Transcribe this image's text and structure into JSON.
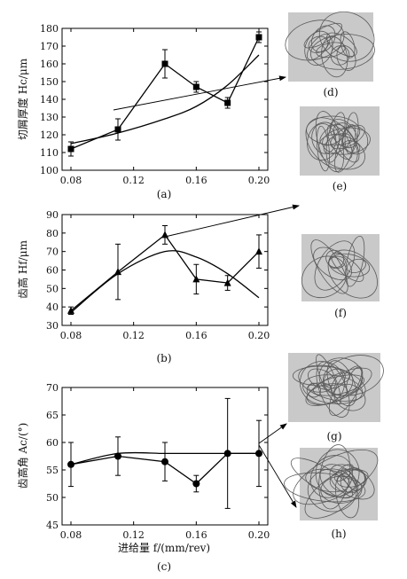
{
  "chart_data": [
    {
      "type": "line",
      "panel_label": "(a)",
      "ylabel": "切屑厚度 Hc/μm",
      "xlabel": "",
      "x": [
        0.08,
        0.11,
        0.14,
        0.16,
        0.18,
        0.2
      ],
      "xticks": [
        "0.08",
        "0.12",
        "0.16",
        "0.20"
      ],
      "xlim": [
        0.08,
        0.2
      ],
      "ylim": [
        100,
        180
      ],
      "yticks": [
        "100",
        "110",
        "120",
        "130",
        "140",
        "150",
        "160",
        "170",
        "180"
      ],
      "series": [
        {
          "marker": "square",
          "values": [
            112,
            123,
            160,
            147,
            138,
            175
          ],
          "errors": [
            4,
            6,
            8,
            3,
            3,
            3
          ]
        },
        {
          "kind": "fit",
          "values": [
            115,
            121,
            129,
            136,
            148,
            165
          ]
        }
      ]
    },
    {
      "type": "line",
      "panel_label": "(b)",
      "ylabel": "齿高 Hf/μm",
      "xlabel": "",
      "x": [
        0.08,
        0.11,
        0.14,
        0.16,
        0.18,
        0.2
      ],
      "xticks": [
        "0.08",
        "0.12",
        "0.16",
        "0.20"
      ],
      "xlim": [
        0.08,
        0.2
      ],
      "ylim": [
        30,
        90
      ],
      "yticks": [
        "30",
        "40",
        "50",
        "60",
        "70",
        "80",
        "90"
      ],
      "series": [
        {
          "marker": "triangle",
          "values": [
            38,
            59,
            79,
            55,
            53,
            70
          ],
          "errors": [
            2,
            15,
            5,
            8,
            4,
            9
          ]
        },
        {
          "kind": "fit",
          "values": [
            37,
            58,
            70,
            67,
            58,
            45
          ]
        }
      ]
    },
    {
      "type": "line",
      "panel_label": "(c)",
      "ylabel": "齿高角 Ac/(°)",
      "xlabel": "进给量 f/(mm/rev)",
      "x": [
        0.08,
        0.11,
        0.14,
        0.16,
        0.18,
        0.2
      ],
      "xticks": [
        "0.08",
        "0.12",
        "0.16",
        "0.20"
      ],
      "xlim": [
        0.08,
        0.2
      ],
      "ylim": [
        45,
        70
      ],
      "yticks": [
        "45",
        "50",
        "55",
        "60",
        "65",
        "70"
      ],
      "series": [
        {
          "marker": "circle",
          "values": [
            56,
            57.5,
            56.5,
            52.5,
            58,
            58
          ],
          "errors": [
            4,
            3.5,
            3.5,
            1.5,
            10,
            6
          ]
        },
        {
          "kind": "fit",
          "values": [
            56,
            58,
            58,
            58,
            58,
            58
          ]
        }
      ]
    }
  ],
  "photos": [
    {
      "label": "(d)"
    },
    {
      "label": "(e)"
    },
    {
      "label": "(f)"
    },
    {
      "label": "(g)"
    },
    {
      "label": "(h)"
    }
  ],
  "colors": {
    "ink": "#000000",
    "photo": "#c9c9c9",
    "chip": "#5a5a5a"
  }
}
